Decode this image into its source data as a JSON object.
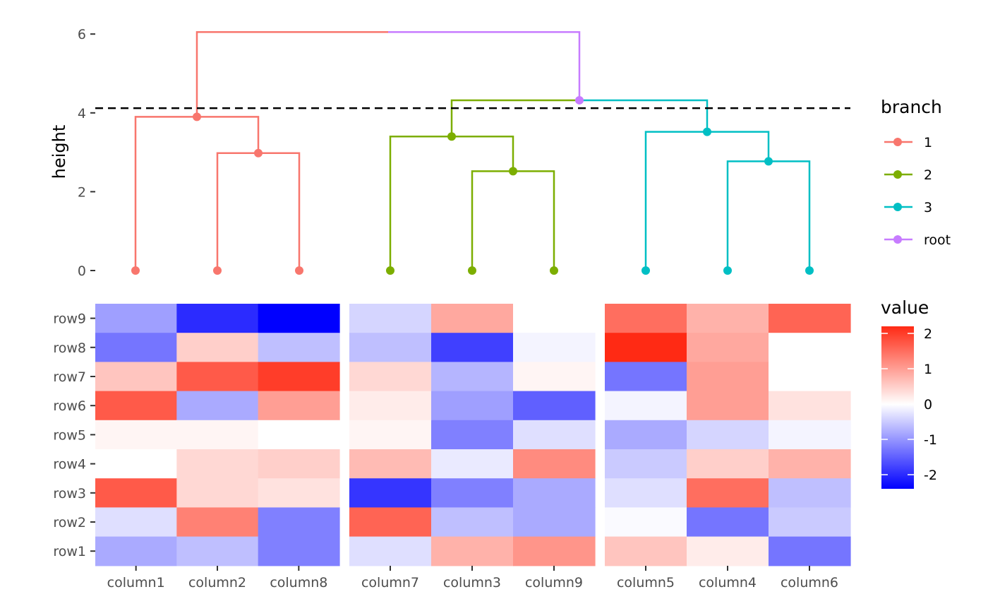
{
  "chart_data": [
    {
      "type": "dendrogram",
      "ylabel": "height",
      "ylim": [
        0,
        6
      ],
      "yticks": [
        0,
        2,
        4,
        6
      ],
      "cut_height": 4.12,
      "leaf_order": [
        "column1",
        "column2",
        "column8",
        "column7",
        "column3",
        "column9",
        "column5",
        "column4",
        "column6"
      ],
      "nodes": [
        {
          "id": "root",
          "height": 6.05,
          "branch": "root",
          "left": "b1",
          "right": "n23"
        },
        {
          "id": "b1",
          "height": 3.9,
          "branch": "1",
          "left": "column1",
          "right": "n28"
        },
        {
          "id": "n28",
          "height": 2.98,
          "branch": "1",
          "left": "column2",
          "right": "column8"
        },
        {
          "id": "n23",
          "height": 4.32,
          "branch": "root",
          "left": "b2",
          "right": "b3"
        },
        {
          "id": "b2",
          "height": 3.4,
          "branch": "2",
          "left": "column7",
          "right": "n39"
        },
        {
          "id": "n39",
          "height": 2.52,
          "branch": "2",
          "left": "column3",
          "right": "column9"
        },
        {
          "id": "b3",
          "height": 3.52,
          "branch": "3",
          "left": "column5",
          "right": "n46"
        },
        {
          "id": "n46",
          "height": 2.77,
          "branch": "3",
          "left": "column4",
          "right": "column6"
        }
      ],
      "leaf_branch": {
        "column1": "1",
        "column2": "1",
        "column8": "1",
        "column7": "2",
        "column3": "2",
        "column9": "2",
        "column5": "3",
        "column4": "3",
        "column6": "3"
      },
      "legend": {
        "title": "branch",
        "position": "right",
        "items": [
          {
            "label": "1",
            "color": "#F8766D"
          },
          {
            "label": "2",
            "color": "#7CAE00"
          },
          {
            "label": "3",
            "color": "#00BFC4"
          },
          {
            "label": "root",
            "color": "#C77CFF"
          }
        ]
      }
    },
    {
      "type": "heatmap",
      "rows": [
        "row9",
        "row8",
        "row7",
        "row6",
        "row5",
        "row4",
        "row3",
        "row2",
        "row1"
      ],
      "columns": [
        "column1",
        "column2",
        "column8",
        "column7",
        "column3",
        "column9",
        "column5",
        "column4",
        "column6"
      ],
      "column_groups": [
        [
          "column1",
          "column2",
          "column8"
        ],
        [
          "column7",
          "column3",
          "column9"
        ],
        [
          "column5",
          "column4",
          "column6"
        ]
      ],
      "values": [
        [
          -0.9,
          -2.0,
          -2.4,
          -0.4,
          0.9,
          0.0,
          1.5,
          0.8,
          1.6
        ],
        [
          -1.3,
          0.5,
          -0.6,
          -0.6,
          -1.8,
          -0.1,
          2.2,
          0.9,
          0.0
        ],
        [
          0.6,
          1.7,
          2.0,
          0.4,
          -0.7,
          0.1,
          -1.3,
          1.0,
          0.0
        ],
        [
          1.7,
          -0.8,
          1.0,
          0.2,
          -0.9,
          -1.5,
          -0.1,
          1.0,
          0.3
        ],
        [
          0.1,
          0.1,
          0.0,
          0.1,
          -1.2,
          -0.3,
          -0.8,
          -0.4,
          -0.1
        ],
        [
          0.0,
          0.4,
          0.5,
          0.7,
          -0.2,
          1.2,
          -0.5,
          0.5,
          0.8
        ],
        [
          1.7,
          0.4,
          0.3,
          -1.9,
          -1.2,
          -0.8,
          -0.3,
          1.5,
          -0.6
        ],
        [
          -0.3,
          1.3,
          -1.2,
          1.6,
          -0.6,
          -0.8,
          -0.05,
          -1.3,
          -0.5
        ],
        [
          -0.8,
          -0.6,
          -1.2,
          -0.3,
          0.8,
          1.1,
          0.6,
          0.2,
          -1.3
        ]
      ],
      "color_scale": {
        "low": "#0000FF",
        "mid": "#FFFFFF",
        "high": "#FF2A14",
        "min": -2.4,
        "max": 2.2
      },
      "legend": {
        "title": "value",
        "ticks": [
          2,
          1,
          0,
          -1,
          -2
        ],
        "tick_labels": [
          "2",
          "1",
          "0",
          "-1",
          "-2"
        ]
      }
    }
  ]
}
